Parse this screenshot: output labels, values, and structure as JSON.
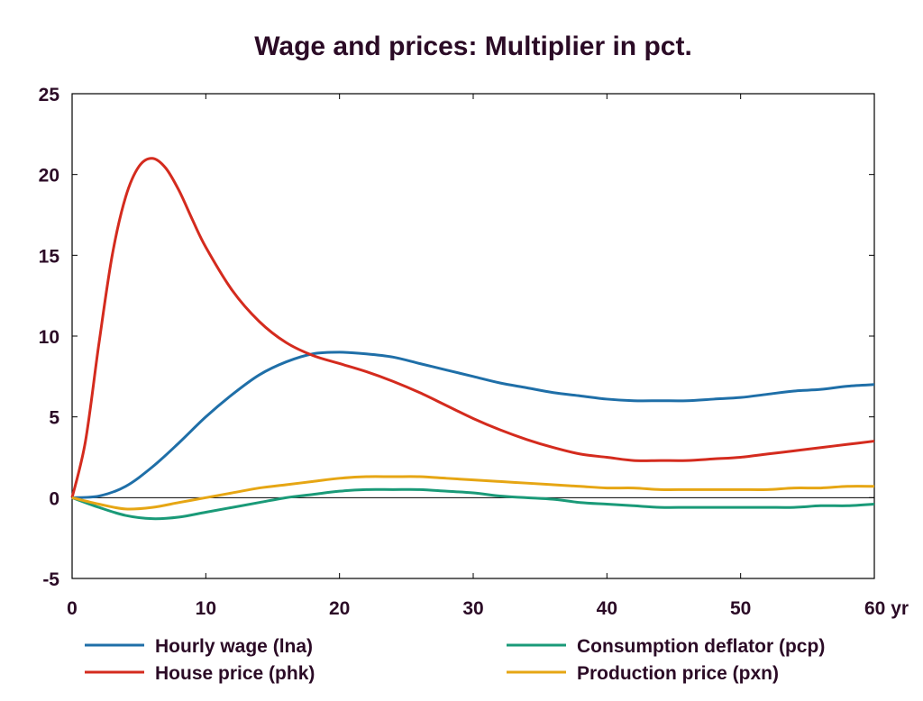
{
  "chart_data": {
    "type": "line",
    "title": "Wage and prices: Multiplier in pct.",
    "xlabel": "",
    "ylabel": "",
    "x_unit": "yr",
    "xlim": [
      0,
      60
    ],
    "ylim": [
      -5,
      25
    ],
    "xticks": [
      0,
      10,
      20,
      30,
      40,
      50,
      60
    ],
    "xtick_labels": [
      "0",
      "10",
      "20",
      "30",
      "40",
      "50",
      "60 yr"
    ],
    "yticks": [
      -5,
      0,
      5,
      10,
      15,
      20,
      25
    ],
    "ytick_labels": [
      "-5",
      "0",
      "5",
      "10",
      "15",
      "20",
      "25"
    ],
    "grid": false,
    "zero_line": true,
    "legend_position": "bottom",
    "series": [
      {
        "name": "Hourly wage (lna)",
        "color": "#1f6fa8",
        "x": [
          0,
          2,
          4,
          6,
          8,
          10,
          12,
          14,
          16,
          18,
          20,
          22,
          24,
          26,
          28,
          30,
          32,
          34,
          36,
          38,
          40,
          42,
          44,
          46,
          48,
          50,
          52,
          54,
          56,
          58,
          60
        ],
        "values": [
          0,
          0.1,
          0.7,
          1.9,
          3.4,
          5.0,
          6.4,
          7.6,
          8.4,
          8.9,
          9.0,
          8.9,
          8.7,
          8.3,
          7.9,
          7.5,
          7.1,
          6.8,
          6.5,
          6.3,
          6.1,
          6.0,
          6.0,
          6.0,
          6.1,
          6.2,
          6.4,
          6.6,
          6.7,
          6.9,
          7.0
        ]
      },
      {
        "name": "House price (phk)",
        "color": "#d42b1e",
        "x": [
          0,
          1,
          2,
          3,
          4,
          5,
          6,
          7,
          8,
          9,
          10,
          12,
          14,
          16,
          18,
          20,
          22,
          24,
          26,
          28,
          30,
          32,
          34,
          36,
          38,
          40,
          42,
          44,
          46,
          48,
          50,
          52,
          54,
          56,
          58,
          60
        ],
        "values": [
          0,
          3.5,
          9.5,
          15.0,
          18.6,
          20.5,
          21.0,
          20.4,
          19.0,
          17.2,
          15.5,
          12.8,
          10.9,
          9.6,
          8.8,
          8.3,
          7.8,
          7.2,
          6.5,
          5.7,
          4.9,
          4.2,
          3.6,
          3.1,
          2.7,
          2.5,
          2.3,
          2.3,
          2.3,
          2.4,
          2.5,
          2.7,
          2.9,
          3.1,
          3.3,
          3.5
        ]
      },
      {
        "name": "Consumption deflator (pcp)",
        "color": "#1a9a78",
        "x": [
          0,
          2,
          4,
          6,
          8,
          10,
          12,
          14,
          16,
          18,
          20,
          22,
          24,
          26,
          28,
          30,
          32,
          34,
          36,
          38,
          40,
          42,
          44,
          46,
          48,
          50,
          52,
          54,
          56,
          58,
          60
        ],
        "values": [
          0,
          -0.6,
          -1.1,
          -1.3,
          -1.2,
          -0.9,
          -0.6,
          -0.3,
          0.0,
          0.2,
          0.4,
          0.5,
          0.5,
          0.5,
          0.4,
          0.3,
          0.1,
          0.0,
          -0.1,
          -0.3,
          -0.4,
          -0.5,
          -0.6,
          -0.6,
          -0.6,
          -0.6,
          -0.6,
          -0.6,
          -0.5,
          -0.5,
          -0.4
        ]
      },
      {
        "name": "Production price (pxn)",
        "color": "#e6a614",
        "x": [
          0,
          2,
          4,
          6,
          8,
          10,
          12,
          14,
          16,
          18,
          20,
          22,
          24,
          26,
          28,
          30,
          32,
          34,
          36,
          38,
          40,
          42,
          44,
          46,
          48,
          50,
          52,
          54,
          56,
          58,
          60
        ],
        "values": [
          0,
          -0.4,
          -0.7,
          -0.6,
          -0.3,
          0.0,
          0.3,
          0.6,
          0.8,
          1.0,
          1.2,
          1.3,
          1.3,
          1.3,
          1.2,
          1.1,
          1.0,
          0.9,
          0.8,
          0.7,
          0.6,
          0.6,
          0.5,
          0.5,
          0.5,
          0.5,
          0.5,
          0.6,
          0.6,
          0.7,
          0.7
        ]
      }
    ]
  }
}
